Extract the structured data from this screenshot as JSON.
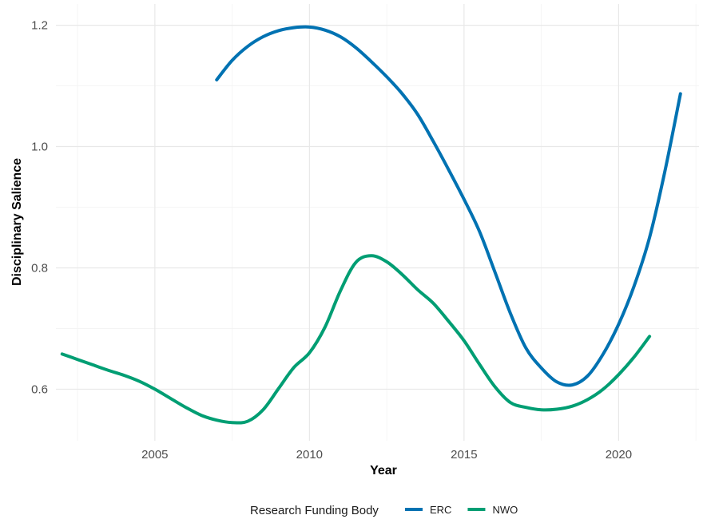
{
  "chart_data": {
    "type": "line",
    "xlabel": "Year",
    "ylabel": "Disciplinary Salience",
    "xlim": [
      2001.8,
      2022.6
    ],
    "ylim": [
      0.515,
      1.235
    ],
    "x_ticks": [
      2005,
      2010,
      2015,
      2020
    ],
    "x_tick_labels": [
      "2005",
      "2010",
      "2015",
      "2020"
    ],
    "x_minor_ticks": [
      2002.5,
      2007.5,
      2012.5,
      2017.5,
      2022.5
    ],
    "y_ticks": [
      0.6,
      0.8,
      1.0,
      1.2
    ],
    "y_tick_labels": [
      "0.6",
      "0.8",
      "1.0",
      "1.2"
    ],
    "y_minor_ticks": [
      0.7,
      0.9,
      1.1
    ],
    "grid": true,
    "legend": {
      "title": "Research Funding Body",
      "position": "bottom"
    },
    "series": [
      {
        "name": "ERC",
        "color": "#0072B2",
        "x": [
          2007.0,
          2007.5,
          2008.0,
          2008.5,
          2009.0,
          2009.5,
          2010.0,
          2010.5,
          2011.0,
          2011.5,
          2012.0,
          2012.5,
          2013.0,
          2013.5,
          2014.0,
          2014.5,
          2015.0,
          2015.5,
          2016.0,
          2016.5,
          2017.0,
          2017.5,
          2018.0,
          2018.5,
          2019.0,
          2019.5,
          2020.0,
          2020.5,
          2021.0,
          2021.5,
          2022.0
        ],
        "y": [
          1.11,
          1.142,
          1.165,
          1.181,
          1.191,
          1.196,
          1.197,
          1.192,
          1.181,
          1.163,
          1.14,
          1.115,
          1.087,
          1.053,
          1.009,
          0.962,
          0.913,
          0.86,
          0.793,
          0.725,
          0.668,
          0.635,
          0.612,
          0.607,
          0.622,
          0.658,
          0.707,
          0.77,
          0.85,
          0.96,
          1.087
        ]
      },
      {
        "name": "NWO",
        "color": "#009E73",
        "x": [
          2002.0,
          2002.5,
          2003.0,
          2003.5,
          2004.0,
          2004.5,
          2005.0,
          2005.5,
          2006.0,
          2006.5,
          2007.0,
          2007.5,
          2008.0,
          2008.5,
          2009.0,
          2009.5,
          2010.0,
          2010.5,
          2011.0,
          2011.5,
          2012.0,
          2012.5,
          2013.0,
          2013.5,
          2014.0,
          2014.5,
          2015.0,
          2015.5,
          2016.0,
          2016.5,
          2017.0,
          2017.5,
          2018.0,
          2018.5,
          2019.0,
          2019.5,
          2020.0,
          2020.5,
          2021.0
        ],
        "y": [
          0.658,
          0.649,
          0.64,
          0.631,
          0.623,
          0.613,
          0.6,
          0.585,
          0.57,
          0.557,
          0.549,
          0.545,
          0.547,
          0.566,
          0.601,
          0.636,
          0.66,
          0.702,
          0.762,
          0.809,
          0.82,
          0.81,
          0.789,
          0.764,
          0.742,
          0.712,
          0.68,
          0.641,
          0.604,
          0.578,
          0.57,
          0.566,
          0.567,
          0.572,
          0.583,
          0.6,
          0.624,
          0.653,
          0.687
        ]
      }
    ]
  }
}
